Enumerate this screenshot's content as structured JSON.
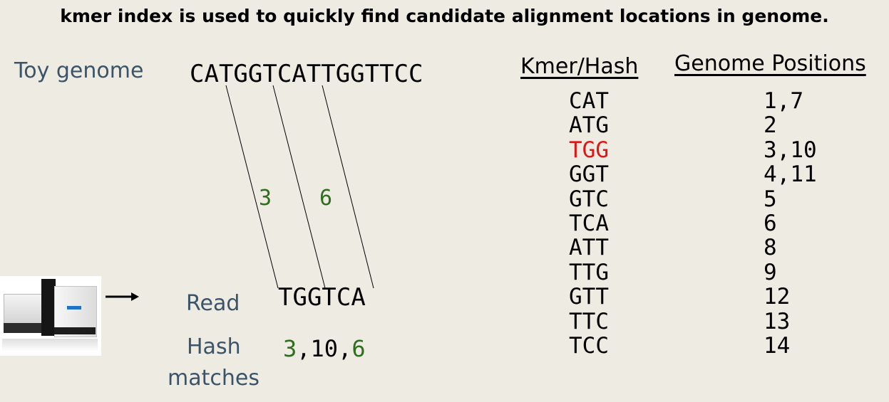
{
  "title": "kmer index is used to quickly find candidate alignment locations in genome.",
  "toy_genome_label": "Toy genome",
  "genome_sequence": "CATGGTCATTGGTTCC",
  "line_labels": {
    "first": "3",
    "second": "6"
  },
  "read_label": "Read",
  "read_sequence": "TGGTCA",
  "hash_label_line1": "Hash",
  "hash_label_line2": "matches",
  "hash_matches": {
    "a": "3",
    "sep1": ",",
    "b": "10",
    "sep2": ",",
    "c": "6"
  },
  "table": {
    "kmer_header": "Kmer/Hash",
    "positions_header": "Genome Positions",
    "rows": [
      {
        "kmer": "CAT",
        "positions": "1,7"
      },
      {
        "kmer": "ATG",
        "positions": "2"
      },
      {
        "kmer": "TGG",
        "positions": "3,10",
        "highlight": true
      },
      {
        "kmer": "GGT",
        "positions": "4,11"
      },
      {
        "kmer": "GTC",
        "positions": "5"
      },
      {
        "kmer": "TCA",
        "positions": "6"
      },
      {
        "kmer": "ATT",
        "positions": "8"
      },
      {
        "kmer": "TTG",
        "positions": "9"
      },
      {
        "kmer": "GTT",
        "positions": "12"
      },
      {
        "kmer": "TTC",
        "positions": "13"
      },
      {
        "kmer": "TCC",
        "positions": "14"
      }
    ]
  },
  "colors": {
    "label": "#3b5468",
    "match": "#2f6e1e",
    "highlight": "#e01515",
    "background": "#eeebe3"
  },
  "icons": {
    "instrument": "sequencer-instrument-icon",
    "arrow": "right-arrow-icon"
  }
}
